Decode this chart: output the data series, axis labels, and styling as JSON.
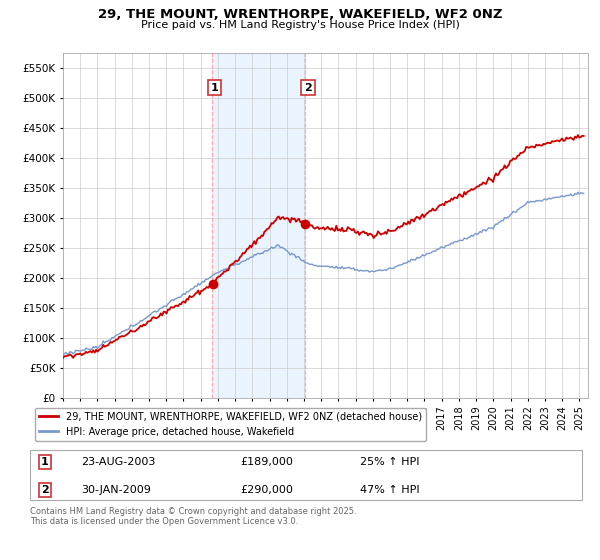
{
  "title_line1": "29, THE MOUNT, WRENTHORPE, WAKEFIELD, WF2 0NZ",
  "title_line2": "Price paid vs. HM Land Registry's House Price Index (HPI)",
  "background_color": "#ffffff",
  "plot_bg_color": "#ffffff",
  "grid_color": "#cccccc",
  "red_line_color": "#cc0000",
  "blue_line_color": "#7799cc",
  "vline_color": "#ffaaaa",
  "shade_color": "#ddeeff",
  "legend_entry1": "29, THE MOUNT, WRENTHORPE, WAKEFIELD, WF2 0NZ (detached house)",
  "legend_entry2": "HPI: Average price, detached house, Wakefield",
  "transaction1": [
    "1",
    "23-AUG-2003",
    "£189,000",
    "25% ↑ HPI"
  ],
  "transaction2": [
    "2",
    "30-JAN-2009",
    "£290,000",
    "47% ↑ HPI"
  ],
  "copyright_text": "Contains HM Land Registry data © Crown copyright and database right 2025.\nThis data is licensed under the Open Government Licence v3.0.",
  "ylim": [
    0,
    575000
  ],
  "yticks": [
    0,
    50000,
    100000,
    150000,
    200000,
    250000,
    300000,
    350000,
    400000,
    450000,
    500000,
    550000
  ],
  "ytick_labels": [
    "£0",
    "£50K",
    "£100K",
    "£150K",
    "£200K",
    "£250K",
    "£300K",
    "£350K",
    "£400K",
    "£450K",
    "£500K",
    "£550K"
  ],
  "sale1_year": 2003.65,
  "sale2_year": 2009.08,
  "sale1_price": 189000,
  "sale2_price": 290000
}
